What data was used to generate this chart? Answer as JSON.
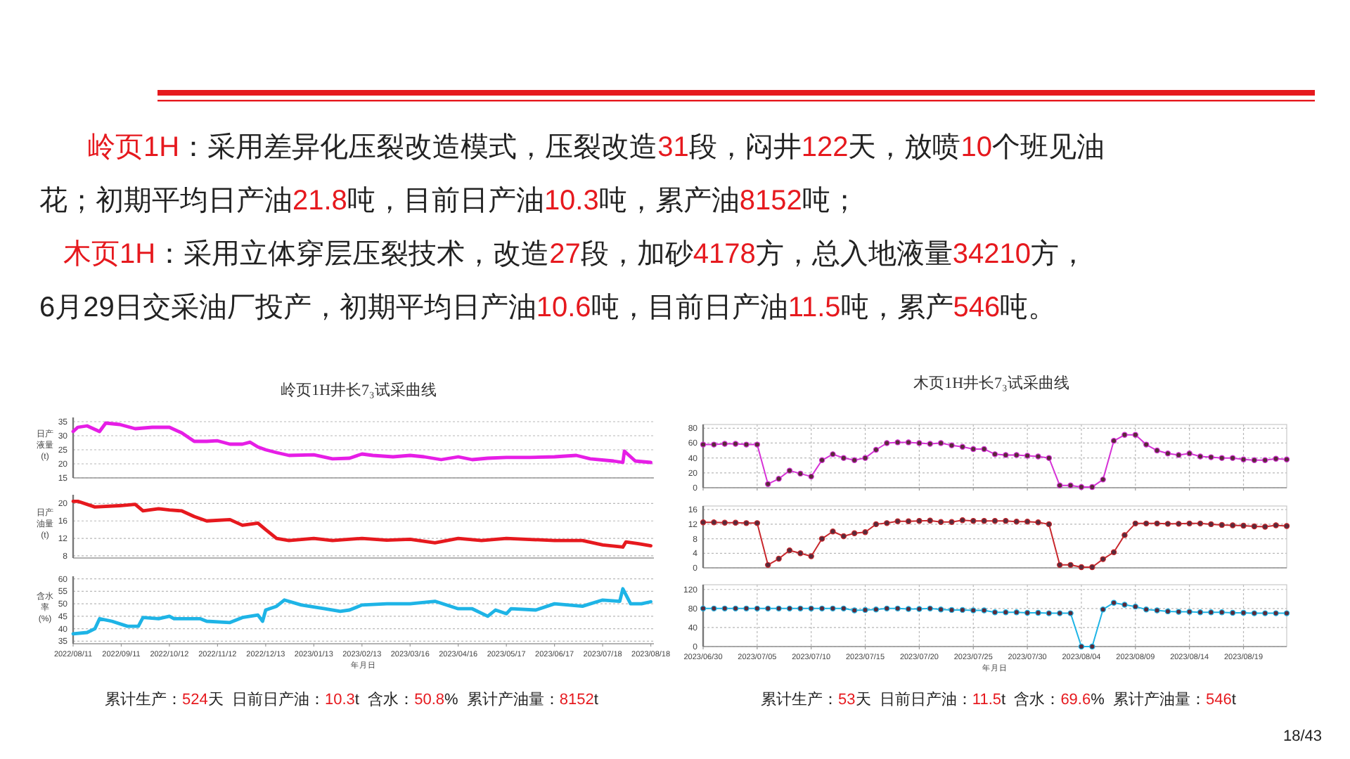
{
  "chart_data": [
    {
      "type": "line",
      "title": "岭页1H井长7₃试采曲线",
      "ylabel": "日产液量(t)",
      "annotations": [
        "岭页1H：采用差异化压裂改造模式，压裂改造31段，闷井122天，放喷10个班见油",
        "花；初期平均日产油21.8吨，目前日产油10.3吨，累产油8152吨；"
      ],
      "grid": "y",
      "tick_labels": "y",
      "xlim": [
        "2022-08-11",
        "2023-08-20"
      ],
      "ylim": [
        15,
        36.5
      ],
      "yticks": [
        15,
        20,
        25,
        30,
        35
      ],
      "x": [
        "2022-08-11",
        "2022-08-14",
        "2022-08-20",
        "2022-08-28",
        "2022-09-01",
        "2022-09-10",
        "2022-09-20",
        "2022-10-01",
        "2022-10-12",
        "2022-10-20",
        "2022-10-28",
        "2022-11-05",
        "2022-11-12",
        "2022-11-20",
        "2022-11-28",
        "2022-12-03",
        "2022-12-08",
        "2022-12-13",
        "2022-12-20",
        "2022-12-28",
        "2023-01-13",
        "2023-01-25",
        "2023-02-05",
        "2023-02-13",
        "2023-02-20",
        "2023-03-05",
        "2023-03-16",
        "2023-03-25",
        "2023-04-05",
        "2023-04-16",
        "2023-04-25",
        "2023-05-05",
        "2023-05-17",
        "2023-06-01",
        "2023-06-17",
        "2023-07-01",
        "2023-07-10",
        "2023-07-25",
        "2023-07-31",
        "2023-08-01",
        "2023-08-04",
        "2023-08-08",
        "2023-08-18"
      ],
      "series": [
        {
          "color": "#e61ee6",
          "values": [
            31.5,
            33,
            33.5,
            31.5,
            34.5,
            34,
            32.5,
            33,
            33,
            31,
            28,
            28,
            28.2,
            27,
            27,
            27.7,
            26,
            25,
            24,
            23,
            23.2,
            21.8,
            22,
            23.5,
            23,
            22.5,
            23,
            22.5,
            21.5,
            22.5,
            21.5,
            22,
            22.3,
            22.3,
            22.5,
            23,
            21.8,
            21,
            20.5,
            24.5,
            23,
            21,
            20.5
          ]
        }
      ]
    },
    {
      "type": "line",
      "ylabel": "日产油量(t)",
      "grid": "y",
      "tick_labels": "y",
      "xlim": [
        "2022-08-11",
        "2023-08-20"
      ],
      "ylim": [
        7.5,
        22
      ],
      "yticks": [
        8,
        12,
        16,
        20
      ],
      "x": [
        "2022-08-11",
        "2022-08-14",
        "2022-08-25",
        "2022-09-10",
        "2022-09-20",
        "2022-09-25",
        "2022-10-05",
        "2022-10-12",
        "2022-10-20",
        "2022-10-28",
        "2022-11-05",
        "2022-11-20",
        "2022-11-28",
        "2022-12-08",
        "2022-12-13",
        "2022-12-20",
        "2022-12-28",
        "2023-01-13",
        "2023-01-25",
        "2023-02-13",
        "2023-03-01",
        "2023-03-16",
        "2023-04-01",
        "2023-04-16",
        "2023-05-01",
        "2023-05-17",
        "2023-06-17",
        "2023-07-05",
        "2023-07-18",
        "2023-07-31",
        "2023-08-02",
        "2023-08-10",
        "2023-08-18"
      ],
      "series": [
        {
          "color": "#e6191e",
          "values": [
            20.5,
            20.5,
            19.2,
            19.5,
            19.8,
            18.3,
            18.8,
            18.5,
            18.3,
            17,
            16,
            16.3,
            15,
            15.5,
            14,
            12,
            11.5,
            12,
            11.5,
            12,
            11.6,
            11.8,
            11,
            12,
            11.5,
            12,
            11.5,
            11.5,
            10.5,
            10,
            11.2,
            10.8,
            10.3
          ]
        }
      ]
    },
    {
      "type": "line",
      "ylabel": "含水率(%)",
      "xlabel": "年月日",
      "annotations": [
        "累计生产：524天  日前日产油：10.3t  含水：50.8%  累计产油量：8152t"
      ],
      "grid": "y",
      "xlim": [
        "2022-08-11",
        "2023-08-20"
      ],
      "ylim": [
        34,
        61
      ],
      "yticks": [
        35,
        40,
        45,
        50,
        55,
        60
      ],
      "xticks": [
        {
          "value": "2022-08-11",
          "label": "2022/08/11"
        },
        {
          "value": "2022-09-11",
          "label": "2022/09/11"
        },
        {
          "value": "2022-10-12",
          "label": "2022/10/12"
        },
        {
          "value": "2022-11-12",
          "label": "2022/11/12"
        },
        {
          "value": "2022-12-13",
          "label": "2022/12/13"
        },
        {
          "value": "2023-01-13",
          "label": "2023/01/13"
        },
        {
          "value": "2023-02-13",
          "label": "2023/02/13"
        },
        {
          "value": "2023-03-16",
          "label": "2023/03/16"
        },
        {
          "value": "2023-04-16",
          "label": "2023/04/16"
        },
        {
          "value": "2023-05-17",
          "label": "2023/05/17"
        },
        {
          "value": "2023-06-17",
          "label": "2023/06/17"
        },
        {
          "value": "2023-07-18",
          "label": "2023/07/18"
        },
        {
          "value": "2023-08-18",
          "label": "2023/08/18"
        }
      ],
      "x": [
        "2022-08-11",
        "2022-08-20",
        "2022-08-25",
        "2022-08-28",
        "2022-09-05",
        "2022-09-15",
        "2022-09-22",
        "2022-09-25",
        "2022-10-05",
        "2022-10-12",
        "2022-10-15",
        "2022-11-01",
        "2022-11-05",
        "2022-11-20",
        "2022-11-28",
        "2022-12-08",
        "2022-12-11",
        "2022-12-13",
        "2022-12-20",
        "2022-12-25",
        "2023-01-05",
        "2023-01-20",
        "2023-01-30",
        "2023-02-05",
        "2023-02-13",
        "2023-03-01",
        "2023-03-16",
        "2023-04-01",
        "2023-04-16",
        "2023-04-25",
        "2023-05-05",
        "2023-05-10",
        "2023-05-17",
        "2023-05-20",
        "2023-06-05",
        "2023-06-17",
        "2023-07-05",
        "2023-07-18",
        "2023-07-29",
        "2023-07-31",
        "2023-08-05",
        "2023-08-12",
        "2023-08-18"
      ],
      "series": [
        {
          "color": "#1eb4e6",
          "values": [
            38,
            38.5,
            40,
            44,
            43,
            41,
            41,
            44.5,
            44,
            45,
            44,
            44,
            43,
            42.5,
            44.5,
            45.5,
            43,
            47.5,
            49,
            51.5,
            49.5,
            48,
            47,
            47.5,
            49.5,
            50,
            50,
            51,
            48,
            48,
            45,
            47.5,
            46,
            48,
            47.5,
            50,
            49,
            51.5,
            51,
            56,
            50,
            50,
            50.8
          ]
        }
      ]
    },
    {
      "type": "line",
      "title": "木页1H井长7₃试采曲线",
      "annotations": [
        "木页1H：采用立体穿层压裂技术，改造27段，加砂4178方，总入地液量34210方，",
        "6月29日交采油厂投产，初期平均日产油10.6吨，目前日产油11.5吨，累产546吨。"
      ],
      "grid": true,
      "tick_labels": "y",
      "marker": "circle",
      "xlim": [
        "2023-06-30",
        "2023-08-23"
      ],
      "ylim": [
        0,
        85
      ],
      "yticks": [
        0,
        20,
        40,
        60,
        80
      ],
      "xticks": [
        "2023-06-30",
        "2023-07-05",
        "2023-07-10",
        "2023-07-15",
        "2023-07-20",
        "2023-07-25",
        "2023-07-30",
        "2023-08-04",
        "2023-08-09",
        "2023-08-14",
        "2023-08-19"
      ],
      "x": [
        "2023-06-30",
        "2023-07-01",
        "2023-07-02",
        "2023-07-03",
        "2023-07-04",
        "2023-07-05",
        "2023-07-06",
        "2023-07-07",
        "2023-07-08",
        "2023-07-09",
        "2023-07-10",
        "2023-07-11",
        "2023-07-12",
        "2023-07-13",
        "2023-07-14",
        "2023-07-15",
        "2023-07-16",
        "2023-07-17",
        "2023-07-18",
        "2023-07-19",
        "2023-07-20",
        "2023-07-21",
        "2023-07-22",
        "2023-07-23",
        "2023-07-24",
        "2023-07-25",
        "2023-07-26",
        "2023-07-27",
        "2023-07-28",
        "2023-07-29",
        "2023-07-30",
        "2023-07-31",
        "2023-08-01",
        "2023-08-02",
        "2023-08-03",
        "2023-08-04",
        "2023-08-05",
        "2023-08-06",
        "2023-08-07",
        "2023-08-08",
        "2023-08-09",
        "2023-08-10",
        "2023-08-11",
        "2023-08-12",
        "2023-08-13",
        "2023-08-14",
        "2023-08-15",
        "2023-08-16",
        "2023-08-17",
        "2023-08-18",
        "2023-08-19",
        "2023-08-20",
        "2023-08-21",
        "2023-08-22",
        "2023-08-23"
      ],
      "series": [
        {
          "color": "#d633d6",
          "values": [
            58,
            58,
            59,
            59,
            58,
            58,
            5,
            12,
            23,
            19,
            15,
            37,
            45,
            40,
            37,
            40,
            51,
            60,
            61,
            61,
            60,
            59,
            60,
            57,
            55,
            52,
            52,
            45,
            44,
            44,
            43,
            42,
            40,
            3,
            3,
            1,
            1,
            11,
            63,
            71,
            71,
            58,
            50,
            46,
            44,
            46,
            42,
            41,
            40,
            40,
            38,
            37,
            37,
            39,
            38
          ]
        }
      ]
    },
    {
      "type": "line",
      "grid": true,
      "tick_labels": "y",
      "marker": "circle",
      "xlim": [
        "2023-06-30",
        "2023-08-23"
      ],
      "ylim": [
        0,
        17
      ],
      "yticks": [
        0,
        4,
        8,
        12,
        16
      ],
      "x": [
        "2023-06-30",
        "2023-07-01",
        "2023-07-02",
        "2023-07-03",
        "2023-07-04",
        "2023-07-05",
        "2023-07-06",
        "2023-07-07",
        "2023-07-08",
        "2023-07-09",
        "2023-07-10",
        "2023-07-11",
        "2023-07-12",
        "2023-07-13",
        "2023-07-14",
        "2023-07-15",
        "2023-07-16",
        "2023-07-17",
        "2023-07-18",
        "2023-07-19",
        "2023-07-20",
        "2023-07-21",
        "2023-07-22",
        "2023-07-23",
        "2023-07-24",
        "2023-07-25",
        "2023-07-26",
        "2023-07-27",
        "2023-07-28",
        "2023-07-29",
        "2023-07-30",
        "2023-07-31",
        "2023-08-01",
        "2023-08-02",
        "2023-08-03",
        "2023-08-04",
        "2023-08-05",
        "2023-08-06",
        "2023-08-07",
        "2023-08-08",
        "2023-08-09",
        "2023-08-10",
        "2023-08-11",
        "2023-08-12",
        "2023-08-13",
        "2023-08-14",
        "2023-08-15",
        "2023-08-16",
        "2023-08-17",
        "2023-08-18",
        "2023-08-19",
        "2023-08-20",
        "2023-08-21",
        "2023-08-22",
        "2023-08-23"
      ],
      "series": [
        {
          "color": "#c8282d",
          "values": [
            12.5,
            12.5,
            12.4,
            12.4,
            12.3,
            12.3,
            0.8,
            2.5,
            4.8,
            4,
            3.2,
            8,
            10,
            8.7,
            9.5,
            9.8,
            12,
            12.3,
            12.8,
            12.8,
            12.9,
            13,
            12.6,
            12.6,
            13.1,
            12.9,
            12.9,
            12.9,
            12.9,
            12.7,
            12.7,
            12.5,
            12,
            0.8,
            0.8,
            0.2,
            0.2,
            2.4,
            4.3,
            9,
            12.2,
            12.2,
            12.2,
            12.1,
            12.1,
            12.2,
            12.2,
            12,
            11.8,
            11.7,
            11.6,
            11.4,
            11.3,
            11.7,
            11.5
          ]
        }
      ]
    },
    {
      "type": "line",
      "xlabel": "年月日",
      "annotations": [
        "累计生产：53天  日前日产油：11.5t  含水：69.6%  累计产油量：546t",
        "18/43"
      ],
      "grid": true,
      "marker": "circle",
      "xlim": [
        "2023-06-30",
        "2023-08-23"
      ],
      "ylim": [
        0,
        130
      ],
      "yticks": [
        0,
        40,
        80,
        120
      ],
      "xticks": [
        {
          "value": "2023-06-30",
          "label": "2023/06/30"
        },
        {
          "value": "2023-07-05",
          "label": "2023/07/05"
        },
        {
          "value": "2023-07-10",
          "label": "2023/07/10"
        },
        {
          "value": "2023-07-15",
          "label": "2023/07/15"
        },
        {
          "value": "2023-07-20",
          "label": "2023/07/20"
        },
        {
          "value": "2023-07-25",
          "label": "2023/07/25"
        },
        {
          "value": "2023-07-30",
          "label": "2023/07/30"
        },
        {
          "value": "2023-08-04",
          "label": "2023/08/04"
        },
        {
          "value": "2023-08-09",
          "label": "2023/08/09"
        },
        {
          "value": "2023-08-14",
          "label": "2023/08/14"
        },
        {
          "value": "2023-08-19",
          "label": "2023/08/19"
        }
      ],
      "x": [
        "2023-06-30",
        "2023-07-01",
        "2023-07-02",
        "2023-07-03",
        "2023-07-04",
        "2023-07-05",
        "2023-07-06",
        "2023-07-07",
        "2023-07-08",
        "2023-07-09",
        "2023-07-10",
        "2023-07-11",
        "2023-07-12",
        "2023-07-13",
        "2023-07-14",
        "2023-07-15",
        "2023-07-16",
        "2023-07-17",
        "2023-07-18",
        "2023-07-19",
        "2023-07-20",
        "2023-07-21",
        "2023-07-22",
        "2023-07-23",
        "2023-07-24",
        "2023-07-25",
        "2023-07-26",
        "2023-07-27",
        "2023-07-28",
        "2023-07-29",
        "2023-07-30",
        "2023-07-31",
        "2023-08-01",
        "2023-08-02",
        "2023-08-03",
        "2023-08-04",
        "2023-08-05",
        "2023-08-06",
        "2023-08-07",
        "2023-08-08",
        "2023-08-09",
        "2023-08-10",
        "2023-08-11",
        "2023-08-12",
        "2023-08-13",
        "2023-08-14",
        "2023-08-15",
        "2023-08-16",
        "2023-08-17",
        "2023-08-18",
        "2023-08-19",
        "2023-08-20",
        "2023-08-21",
        "2023-08-22",
        "2023-08-23"
      ],
      "series": [
        {
          "color": "#1eb4e6",
          "values": [
            80,
            80,
            80,
            80,
            80,
            80,
            80,
            80,
            80,
            80,
            80,
            80,
            80,
            80,
            76,
            77,
            78,
            80,
            80,
            79,
            79,
            80,
            78,
            77,
            77,
            76,
            76,
            72,
            72,
            72,
            71,
            71,
            70,
            70,
            70,
            0,
            0,
            78,
            92,
            88,
            84,
            78,
            76,
            74,
            73,
            73,
            72,
            72,
            72,
            71,
            71,
            70,
            70,
            70,
            70
          ]
        }
      ]
    }
  ]
}
